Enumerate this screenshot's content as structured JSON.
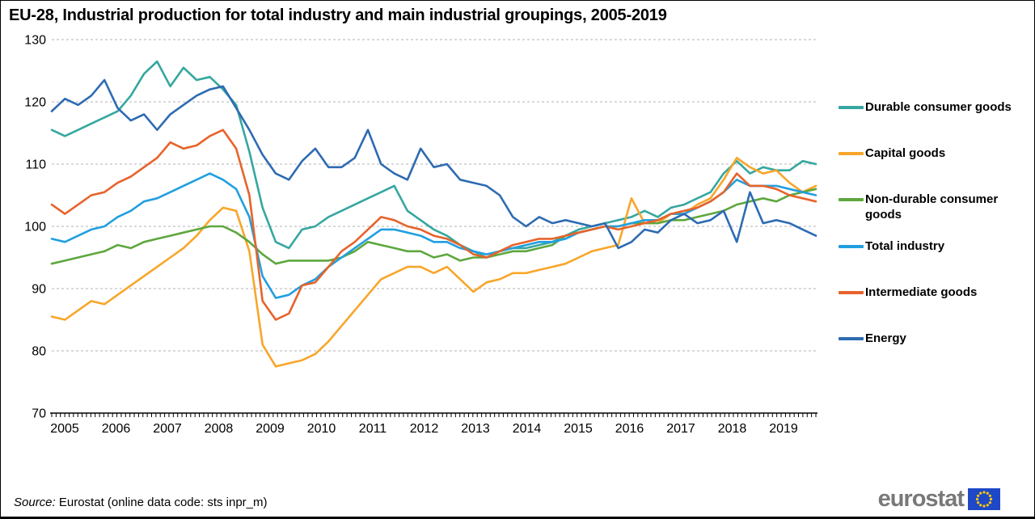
{
  "title": "EU-28, Industrial production for total industry and main industrial groupings, 2005-2019",
  "source": {
    "prefix": "Source:",
    "text": " Eurostat (online data code: sts inpr_m)"
  },
  "logo": {
    "wordmark": "eurostat",
    "flag_icon": "eu-flag-icon"
  },
  "chart_data": {
    "type": "line",
    "title": "EU-28, Industrial production for total industry and main industrial groupings, 2005-2019",
    "xlabel": "",
    "ylabel": "",
    "ylim": [
      70,
      130
    ],
    "yticks": [
      70,
      80,
      90,
      100,
      110,
      120,
      130
    ],
    "grid": "horizontal dashed",
    "legend_position": "right",
    "x_unit": "quarterly samples read from monthly index series (2015=100 style index)",
    "year_labels": [
      "2005",
      "2006",
      "2007",
      "2008",
      "2009",
      "2010",
      "2011",
      "2012",
      "2013",
      "2014",
      "2015",
      "2016",
      "2017",
      "2018",
      "2019"
    ],
    "x": [
      "2005-Q1",
      "2005-Q2",
      "2005-Q3",
      "2005-Q4",
      "2006-Q1",
      "2006-Q2",
      "2006-Q3",
      "2006-Q4",
      "2007-Q1",
      "2007-Q2",
      "2007-Q3",
      "2007-Q4",
      "2008-Q1",
      "2008-Q2",
      "2008-Q3",
      "2008-Q4",
      "2009-Q1",
      "2009-Q2",
      "2009-Q3",
      "2009-Q4",
      "2010-Q1",
      "2010-Q2",
      "2010-Q3",
      "2010-Q4",
      "2011-Q1",
      "2011-Q2",
      "2011-Q3",
      "2011-Q4",
      "2012-Q1",
      "2012-Q2",
      "2012-Q3",
      "2012-Q4",
      "2013-Q1",
      "2013-Q2",
      "2013-Q3",
      "2013-Q4",
      "2014-Q1",
      "2014-Q2",
      "2014-Q3",
      "2014-Q4",
      "2015-Q1",
      "2015-Q2",
      "2015-Q3",
      "2015-Q4",
      "2016-Q1",
      "2016-Q2",
      "2016-Q3",
      "2016-Q4",
      "2017-Q1",
      "2017-Q2",
      "2017-Q3",
      "2017-Q4",
      "2018-Q1",
      "2018-Q2",
      "2018-Q3",
      "2018-Q4",
      "2019-Q1",
      "2019-Q2",
      "2019-Q3"
    ],
    "series": [
      {
        "name": "Durable consumer goods",
        "color": "#35a7a0",
        "values": [
          115.5,
          114.5,
          115.5,
          116.5,
          117.5,
          118.5,
          121.0,
          124.5,
          126.5,
          122.5,
          125.5,
          123.5,
          124.0,
          122.0,
          119.5,
          112.0,
          103.0,
          97.5,
          96.5,
          99.5,
          100.0,
          101.5,
          102.5,
          103.5,
          104.5,
          105.5,
          106.5,
          102.5,
          101.0,
          99.5,
          98.5,
          97.0,
          96.0,
          95.0,
          96.0,
          96.5,
          96.5,
          97.0,
          97.5,
          98.5,
          99.5,
          100.0,
          100.5,
          101.0,
          101.5,
          102.5,
          101.5,
          103.0,
          103.5,
          104.5,
          105.5,
          108.5,
          110.5,
          108.5,
          109.5,
          109.0,
          109.0,
          110.5,
          110.0
        ]
      },
      {
        "name": "Capital goods",
        "color": "#f8a62a",
        "values": [
          85.5,
          85.0,
          86.5,
          88.0,
          87.5,
          89.0,
          90.5,
          92.0,
          93.5,
          95.0,
          96.5,
          98.5,
          101.0,
          103.0,
          102.5,
          96.0,
          81.0,
          77.5,
          78.0,
          78.5,
          79.5,
          81.5,
          84.0,
          86.5,
          89.0,
          91.5,
          92.5,
          93.5,
          93.5,
          92.5,
          93.5,
          91.5,
          89.5,
          91.0,
          91.5,
          92.5,
          92.5,
          93.0,
          93.5,
          94.0,
          95.0,
          96.0,
          96.5,
          97.0,
          104.5,
          100.5,
          100.5,
          102.0,
          102.0,
          103.5,
          104.5,
          107.5,
          111.0,
          109.5,
          108.5,
          109.0,
          107.0,
          105.5,
          106.5
        ]
      },
      {
        "name": "Non-durable consumer goods",
        "color": "#5ea73e",
        "values": [
          94.0,
          94.5,
          95.0,
          95.5,
          96.0,
          97.0,
          96.5,
          97.5,
          98.0,
          98.5,
          99.0,
          99.5,
          100.0,
          100.0,
          99.0,
          97.5,
          95.5,
          94.0,
          94.5,
          94.5,
          94.5,
          94.5,
          95.0,
          96.0,
          97.5,
          97.0,
          96.5,
          96.0,
          96.0,
          95.0,
          95.5,
          94.5,
          95.0,
          95.0,
          95.5,
          96.0,
          96.0,
          96.5,
          97.0,
          98.5,
          99.0,
          99.5,
          100.0,
          100.0,
          100.5,
          100.5,
          100.5,
          101.0,
          101.0,
          101.5,
          102.0,
          102.5,
          103.5,
          104.0,
          104.5,
          104.0,
          105.0,
          105.5,
          106.0
        ]
      },
      {
        "name": "Total industry",
        "color": "#229fe0",
        "values": [
          98.0,
          97.5,
          98.5,
          99.5,
          100.0,
          101.5,
          102.5,
          104.0,
          104.5,
          105.5,
          106.5,
          107.5,
          108.5,
          107.5,
          106.0,
          101.5,
          92.0,
          88.5,
          89.0,
          90.5,
          91.5,
          93.5,
          95.0,
          96.5,
          98.0,
          99.5,
          99.5,
          99.0,
          98.5,
          97.5,
          97.5,
          96.5,
          96.0,
          95.5,
          96.0,
          96.5,
          97.0,
          97.5,
          97.5,
          98.0,
          99.0,
          99.5,
          100.0,
          100.0,
          100.5,
          101.0,
          101.0,
          102.0,
          102.0,
          103.0,
          104.0,
          105.5,
          107.5,
          106.5,
          106.5,
          106.5,
          106.0,
          105.5,
          105.0
        ]
      },
      {
        "name": "Intermediate goods",
        "color": "#e7632b",
        "values": [
          103.5,
          102.0,
          103.5,
          105.0,
          105.5,
          107.0,
          108.0,
          109.5,
          111.0,
          113.5,
          112.5,
          113.0,
          114.5,
          115.5,
          112.5,
          105.0,
          88.0,
          85.0,
          86.0,
          90.5,
          91.0,
          93.5,
          96.0,
          97.5,
          99.5,
          101.5,
          101.0,
          100.0,
          99.5,
          98.5,
          98.0,
          97.0,
          95.5,
          95.0,
          96.0,
          97.0,
          97.5,
          98.0,
          98.0,
          98.5,
          99.0,
          99.5,
          100.0,
          99.5,
          100.0,
          100.5,
          101.0,
          102.0,
          102.5,
          103.0,
          104.0,
          105.5,
          108.5,
          106.5,
          106.5,
          106.0,
          105.0,
          104.5,
          104.0
        ]
      },
      {
        "name": "Energy",
        "color": "#2e6bb2",
        "values": [
          118.5,
          120.5,
          119.5,
          121.0,
          123.5,
          119.0,
          117.0,
          118.0,
          115.5,
          118.0,
          119.5,
          121.0,
          122.0,
          122.5,
          119.0,
          115.5,
          111.5,
          108.5,
          107.5,
          110.5,
          112.5,
          109.5,
          109.5,
          111.0,
          115.5,
          110.0,
          108.5,
          107.5,
          112.5,
          109.5,
          110.0,
          107.5,
          107.0,
          106.5,
          105.0,
          101.5,
          100.0,
          101.5,
          100.5,
          101.0,
          100.5,
          100.0,
          100.5,
          96.5,
          97.5,
          99.5,
          99.0,
          101.0,
          102.0,
          100.5,
          101.0,
          102.5,
          97.5,
          105.5,
          100.5,
          101.0,
          100.5,
          99.5,
          98.5
        ]
      }
    ]
  },
  "style": {
    "gridline_color": "#b3b3b3",
    "axis_color": "#000000",
    "logo_gray": "#787878",
    "eu_flag_blue": "#1e48c8",
    "eu_star_yellow": "#ffcc00"
  }
}
